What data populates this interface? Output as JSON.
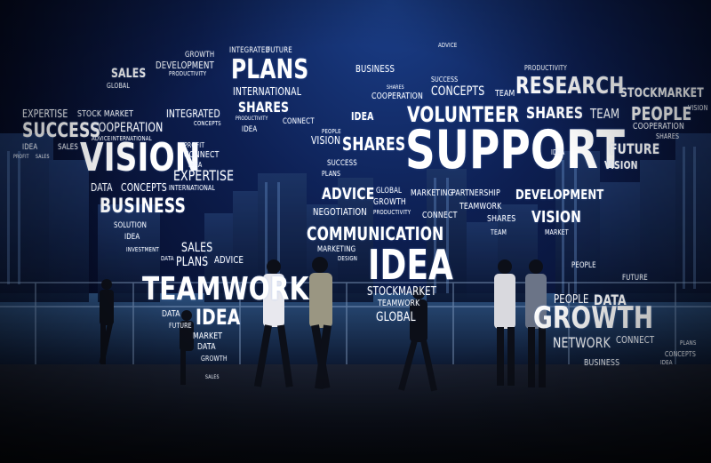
{
  "scene": {
    "description_free": true,
    "words": {
      "w1": "SALES",
      "w2": "GLOBAL",
      "w3": "GROWTH",
      "w4": "DEVELOPMENT",
      "w5": "PRODUCTIVITY",
      "w6": "INTEGRATED",
      "w7": "FUTURE",
      "w8": "PLANS",
      "w9": "INTERNATIONAL",
      "w10": "SHARES",
      "w11": "PRODUCTIVITY",
      "w12": "CONNECT",
      "w13": "IDEA",
      "w14": "BUSINESS",
      "w15": "ADVICE",
      "w16": "PRODUCTIVITY",
      "w17": "SHARES",
      "w18": "SUCCESS",
      "w19": "CONCEPTS",
      "w20": "RESEARCH",
      "w21": "STOCKMARKET",
      "w22": "TEAM",
      "w23": "COOPERATION",
      "w24": "VOLUNTEER",
      "w25": "SHARES",
      "w26": "TEAM",
      "w27": "PEOPLE",
      "w28": "VISION",
      "w29": "EXPERTISE",
      "w30": "STOCK MARKET",
      "w31": "SUCCESS",
      "w32": "COOPERATION",
      "w33": "ADVICE",
      "w34": "INTERNATIONAL",
      "w35": "INTEGRATED",
      "w36": "CONCEPTS",
      "w37": "PEOPLE",
      "w38": "IDEA",
      "w39": "VISION",
      "w40": "SHARES",
      "w41": "SUPPORT",
      "w42": "FUTURE",
      "w43": "COOPERATION",
      "w44": "SHARES",
      "w45": "IDEA",
      "w46": "SALES",
      "w47": "VISION",
      "w48": "PROFIT",
      "w49": "CONNECT",
      "w50": "IDEA",
      "w51": "EXPERTISE",
      "w52": "SUCCESS",
      "w53": "PLANS",
      "w54": "VISION",
      "w55": "DATA",
      "w56": "CONCEPTS",
      "w57": "INTERNATIONAL",
      "w58": "BUSINESS",
      "w59": "ADVICE",
      "w60": "NEGOTIATION",
      "w61": "GLOBAL",
      "w62": "GROWTH",
      "w63": "PRODUCTIVITY",
      "w64": "MARKETING",
      "w65": "PARTNERSHIP",
      "w66": "CONNECT",
      "w67": "TEAMWORK",
      "w68": "DEVELOPMENT",
      "w69": "SOLUTION",
      "w70": "IDEA",
      "w71": "COMMUNICATION",
      "w72": "SHARES",
      "w73": "VISION",
      "w74": "MARKET",
      "w75": "TEAM",
      "w76": "SALES",
      "w77": "PLANS",
      "w78": "ADVICE",
      "w79": "IDEA",
      "w80": "MARKETING",
      "w81": "DESIGN",
      "w82": "PEOPLE",
      "w83": "TEAMWORK",
      "w84": "STOCKMARKET",
      "w85": "TEAMWORK",
      "w86": "GLOBAL",
      "w87": "DATA",
      "w88": "IDEA",
      "w89": "GROWTH",
      "w90": "PEOPLE",
      "w91": "DATA",
      "w92": "FUTURE",
      "w93": "NETWORK",
      "w94": "CONNECT",
      "w95": "BUSINESS",
      "w96": "MARKET",
      "w97": "DATA",
      "w98": "GROWTH",
      "w99": "SALES",
      "w100": "PLANS",
      "w101": "CONCEPTS",
      "w102": "IDEA",
      "w103": "FUTURE",
      "w104": "IDEA",
      "w105": "DATA",
      "w106": "INVESTMENT",
      "w107": "PROFIT",
      "w108": "SALES"
    }
  }
}
